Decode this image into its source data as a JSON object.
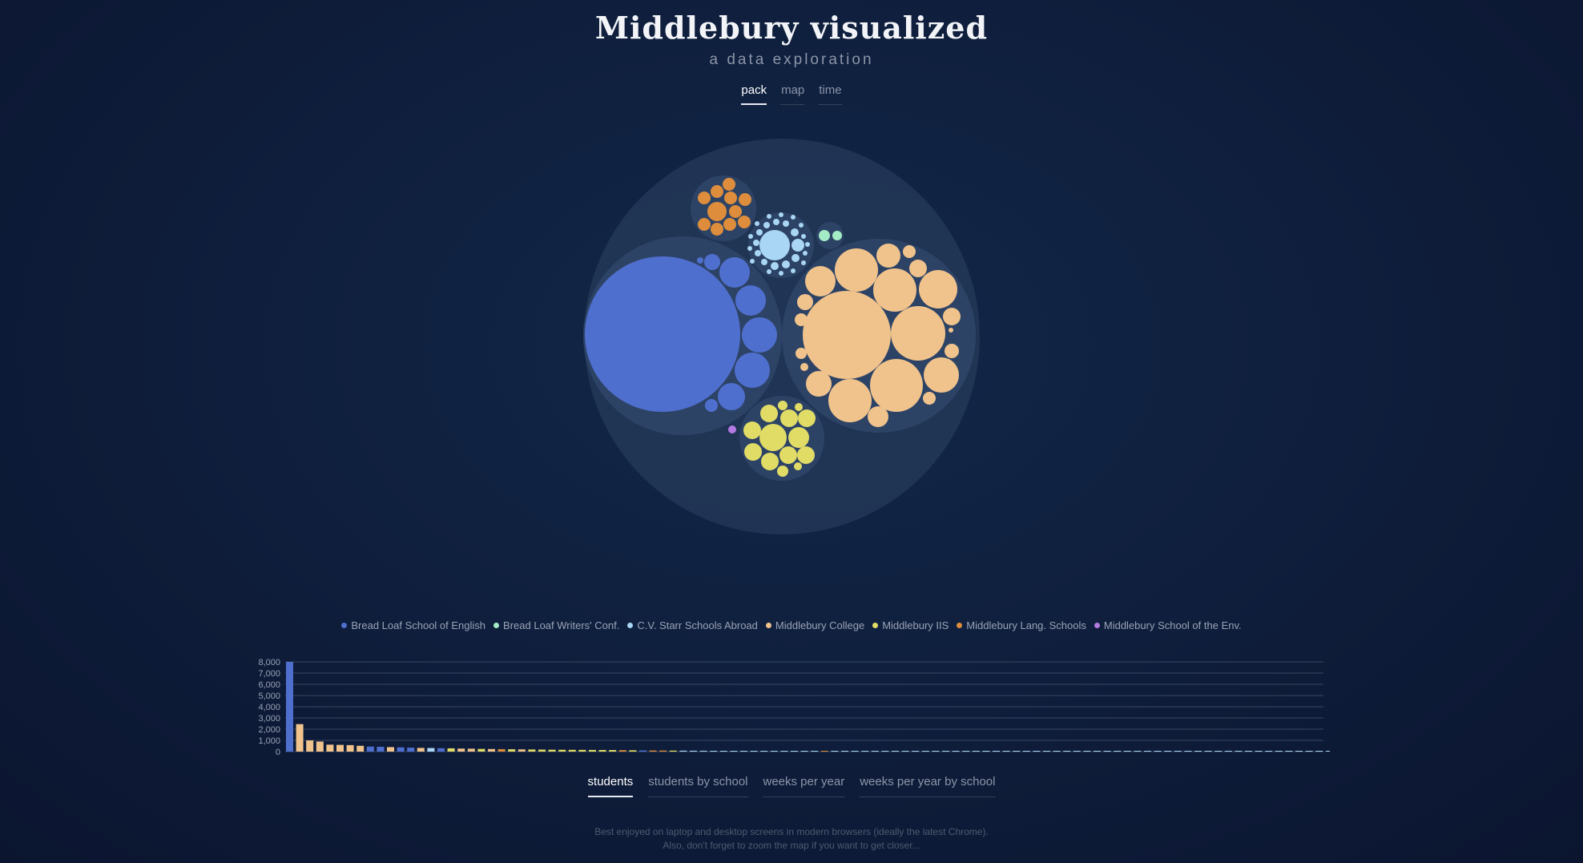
{
  "header": {
    "title": "Middlebury visualized",
    "subtitle": "a data exploration"
  },
  "view_tabs": [
    {
      "label": "pack",
      "active": true
    },
    {
      "label": "map",
      "active": false
    },
    {
      "label": "time",
      "active": false
    }
  ],
  "legend": [
    {
      "label": "Bread Loaf School of English",
      "color": "#4f6fcf"
    },
    {
      "label": "Bread Loaf Writers' Conf.",
      "color": "#a3ecc6"
    },
    {
      "label": "C.V. Starr Schools Abroad",
      "color": "#a9d6f5"
    },
    {
      "label": "Middlebury College",
      "color": "#f1c38c"
    },
    {
      "label": "Middlebury IIS",
      "color": "#e1dc66"
    },
    {
      "label": "Middlebury Lang. Schools",
      "color": "#dd8d3c"
    },
    {
      "label": "Middlebury School of the Env.",
      "color": "#b27ae2"
    }
  ],
  "chart_data": {
    "type": "bar",
    "ylim": [
      0,
      8000
    ],
    "yticks": [
      "0",
      "1,000",
      "2,000",
      "3,000",
      "4,000",
      "5,000",
      "6,000",
      "7,000",
      "8,000"
    ],
    "values": [
      8000,
      2450,
      1000,
      900,
      620,
      600,
      580,
      520,
      450,
      430,
      400,
      380,
      350,
      330,
      320,
      300,
      290,
      270,
      260,
      240,
      230,
      220,
      210,
      200,
      190,
      180,
      170,
      165,
      160,
      155,
      150,
      145,
      140,
      130,
      120,
      110,
      100,
      95,
      90,
      85,
      80,
      75,
      70,
      65,
      60,
      55,
      50,
      48,
      45,
      42,
      40,
      38,
      36,
      34,
      32,
      30,
      28,
      26,
      24,
      22,
      20,
      18,
      16,
      14,
      12,
      10,
      8,
      6,
      5,
      4,
      3,
      2,
      2,
      1,
      1,
      1,
      1,
      1,
      1,
      1,
      1,
      1,
      1,
      1,
      1,
      1,
      1,
      1,
      1,
      1,
      1,
      1,
      1,
      1,
      1,
      1,
      1,
      1,
      1,
      1,
      1,
      1,
      1,
      1
    ],
    "bar_colors": [
      "#4f6fcf",
      "#f1c38c",
      "#f1c38c",
      "#f1c38c",
      "#f1c38c",
      "#f1c38c",
      "#f1c38c",
      "#f1c38c",
      "#4f6fcf",
      "#4f6fcf",
      "#f1c38c",
      "#4f6fcf",
      "#4f6fcf",
      "#f1c38c",
      "#a9d6f5",
      "#4f6fcf",
      "#e1dc66",
      "#f1c38c",
      "#f1c38c",
      "#e1dc66",
      "#f1c38c",
      "#dd8d3c",
      "#e1dc66",
      "#f1c38c",
      "#e1dc66",
      "#e1dc66",
      "#e1dc66",
      "#e1dc66",
      "#e1dc66",
      "#e1dc66",
      "#e1dc66",
      "#e1dc66",
      "#e1dc66",
      "#dd8d3c",
      "#e1dc66",
      "#4f6fcf",
      "#dd8d3c",
      "#dd8d3c",
      "#e1dc66",
      "#a9d6f5",
      "#a9d6f5",
      "#a9d6f5",
      "#a9d6f5",
      "#a9d6f5",
      "#a9d6f5",
      "#a9d6f5",
      "#a9d6f5",
      "#a9d6f5",
      "#a9d6f5",
      "#a9d6f5",
      "#a9d6f5",
      "#a9d6f5",
      "#a9d6f5",
      "#dd8d3c",
      "#a9d6f5",
      "#a9d6f5",
      "#a9d6f5",
      "#a9d6f5",
      "#a9d6f5",
      "#a9d6f5",
      "#a9d6f5",
      "#a9d6f5",
      "#a9d6f5",
      "#a9d6f5",
      "#a9d6f5",
      "#a9d6f5",
      "#a9d6f5",
      "#a9d6f5",
      "#a9d6f5",
      "#a9d6f5",
      "#a9d6f5",
      "#a9d6f5",
      "#a9d6f5",
      "#a9d6f5",
      "#a9d6f5",
      "#a9d6f5",
      "#a9d6f5",
      "#a9d6f5",
      "#a9d6f5",
      "#a9d6f5",
      "#a9d6f5",
      "#a9d6f5",
      "#a9d6f5",
      "#a9d6f5",
      "#a9d6f5",
      "#a9d6f5",
      "#a9d6f5",
      "#a9d6f5",
      "#a9d6f5",
      "#a9d6f5",
      "#a9d6f5",
      "#a9d6f5",
      "#a9d6f5",
      "#a9d6f5",
      "#a9d6f5",
      "#a9d6f5",
      "#a9d6f5",
      "#a9d6f5",
      "#a9d6f5",
      "#a9d6f5",
      "#a9d6f5",
      "#a9d6f5",
      "#a9d6f5",
      "#a9d6f5"
    ],
    "grid": true
  },
  "chart_tabs": [
    {
      "label": "students",
      "active": true
    },
    {
      "label": "students by school",
      "active": false
    },
    {
      "label": "weeks per year",
      "active": false
    },
    {
      "label": "weeks per year by school",
      "active": false
    }
  ],
  "footer": {
    "line1": "Best enjoyed on laptop and desktop screens in modern browsers (ideally the latest Chrome).",
    "line2": "Also, don't forget to zoom the map if you want to get closer..."
  }
}
